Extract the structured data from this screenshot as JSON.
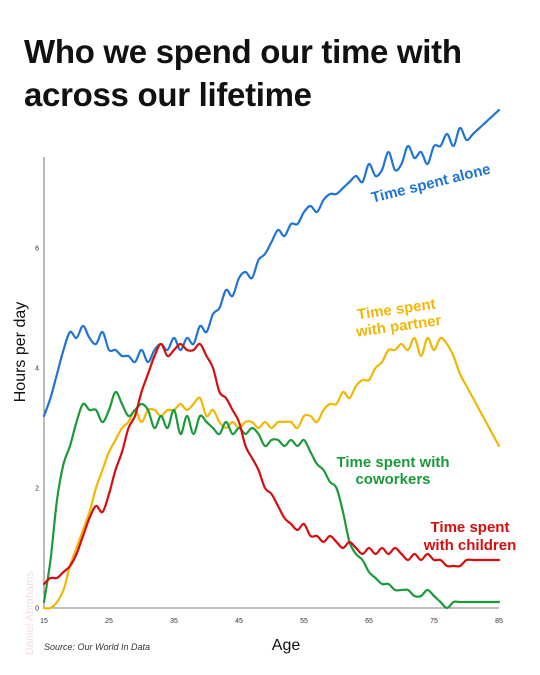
{
  "title_lines": [
    "Who we spend our time with",
    "across our lifetime"
  ],
  "source": "Source: Our World In Data",
  "watermark": "Daniel Abrahams",
  "chart_data": {
    "type": "line",
    "xlabel": "Age",
    "ylabel": "Hours per day",
    "xlim": [
      15,
      85
    ],
    "ylim": [
      0,
      8
    ],
    "x_ticks": [
      15,
      25,
      35,
      45,
      55,
      65,
      75,
      85
    ],
    "y_ticks": [
      0,
      2,
      4,
      6
    ],
    "grid": false,
    "series": [
      {
        "name": "Time spent alone",
        "label_lines": [
          "Time spent alone"
        ],
        "color": "#1f74d6",
        "label_rotate": -14,
        "points": [
          [
            15,
            3.2
          ],
          [
            16,
            3.5
          ],
          [
            17,
            3.9
          ],
          [
            18,
            4.3
          ],
          [
            19,
            4.6
          ],
          [
            20,
            4.5
          ],
          [
            21,
            4.7
          ],
          [
            22,
            4.5
          ],
          [
            23,
            4.4
          ],
          [
            24,
            4.6
          ],
          [
            25,
            4.3
          ],
          [
            26,
            4.3
          ],
          [
            27,
            4.2
          ],
          [
            28,
            4.2
          ],
          [
            29,
            4.1
          ],
          [
            30,
            4.3
          ],
          [
            31,
            4.1
          ],
          [
            32,
            4.3
          ],
          [
            33,
            4.4
          ],
          [
            34,
            4.3
          ],
          [
            35,
            4.5
          ],
          [
            36,
            4.3
          ],
          [
            37,
            4.5
          ],
          [
            38,
            4.4
          ],
          [
            39,
            4.7
          ],
          [
            40,
            4.6
          ],
          [
            41,
            4.9
          ],
          [
            42,
            5.0
          ],
          [
            43,
            5.3
          ],
          [
            44,
            5.2
          ],
          [
            45,
            5.5
          ],
          [
            46,
            5.6
          ],
          [
            47,
            5.5
          ],
          [
            48,
            5.8
          ],
          [
            49,
            5.9
          ],
          [
            50,
            6.1
          ],
          [
            51,
            6.3
          ],
          [
            52,
            6.2
          ],
          [
            53,
            6.4
          ],
          [
            54,
            6.4
          ],
          [
            55,
            6.6
          ],
          [
            56,
            6.7
          ],
          [
            57,
            6.6
          ],
          [
            58,
            6.8
          ],
          [
            59,
            6.9
          ],
          [
            60,
            6.9
          ],
          [
            61,
            7.0
          ],
          [
            62,
            7.1
          ],
          [
            63,
            7.2
          ],
          [
            64,
            7.1
          ],
          [
            65,
            7.4
          ],
          [
            66,
            7.2
          ],
          [
            67,
            7.3
          ],
          [
            68,
            7.6
          ],
          [
            69,
            7.3
          ],
          [
            70,
            7.4
          ],
          [
            71,
            7.7
          ],
          [
            72,
            7.5
          ],
          [
            73,
            7.6
          ],
          [
            74,
            7.4
          ],
          [
            75,
            7.7
          ],
          [
            76,
            7.7
          ],
          [
            77,
            7.9
          ],
          [
            78,
            7.7
          ],
          [
            79,
            8.0
          ],
          [
            80,
            7.8
          ],
          [
            81,
            7.9
          ],
          [
            82,
            8.0
          ],
          [
            83,
            8.1
          ],
          [
            84,
            8.2
          ],
          [
            85,
            8.3
          ]
        ]
      },
      {
        "name": "Time spent with partner",
        "label_lines": [
          "Time spent",
          "with partner"
        ],
        "color": "#f2b705",
        "label_rotate": -8,
        "points": [
          [
            15,
            0.0
          ],
          [
            16,
            0.0
          ],
          [
            17,
            0.1
          ],
          [
            18,
            0.3
          ],
          [
            19,
            0.7
          ],
          [
            20,
            1.0
          ],
          [
            21,
            1.3
          ],
          [
            22,
            1.6
          ],
          [
            23,
            2.0
          ],
          [
            24,
            2.3
          ],
          [
            25,
            2.6
          ],
          [
            26,
            2.8
          ],
          [
            27,
            3.0
          ],
          [
            28,
            3.1
          ],
          [
            29,
            3.3
          ],
          [
            30,
            3.1
          ],
          [
            31,
            3.3
          ],
          [
            32,
            3.3
          ],
          [
            33,
            3.2
          ],
          [
            34,
            3.3
          ],
          [
            35,
            3.3
          ],
          [
            36,
            3.4
          ],
          [
            37,
            3.3
          ],
          [
            38,
            3.4
          ],
          [
            39,
            3.5
          ],
          [
            40,
            3.2
          ],
          [
            41,
            3.3
          ],
          [
            42,
            3.1
          ],
          [
            43,
            3.0
          ],
          [
            44,
            3.1
          ],
          [
            45,
            3.0
          ],
          [
            46,
            3.1
          ],
          [
            47,
            3.1
          ],
          [
            48,
            3.0
          ],
          [
            49,
            3.1
          ],
          [
            50,
            3.0
          ],
          [
            51,
            3.1
          ],
          [
            52,
            3.1
          ],
          [
            53,
            3.1
          ],
          [
            54,
            3.0
          ],
          [
            55,
            3.2
          ],
          [
            56,
            3.2
          ],
          [
            57,
            3.1
          ],
          [
            58,
            3.3
          ],
          [
            59,
            3.4
          ],
          [
            60,
            3.4
          ],
          [
            61,
            3.6
          ],
          [
            62,
            3.5
          ],
          [
            63,
            3.7
          ],
          [
            64,
            3.8
          ],
          [
            65,
            3.8
          ],
          [
            66,
            4.0
          ],
          [
            67,
            4.1
          ],
          [
            68,
            4.3
          ],
          [
            69,
            4.3
          ],
          [
            70,
            4.4
          ],
          [
            71,
            4.3
          ],
          [
            72,
            4.5
          ],
          [
            73,
            4.2
          ],
          [
            74,
            4.5
          ],
          [
            75,
            4.3
          ],
          [
            76,
            4.5
          ],
          [
            77,
            4.4
          ],
          [
            78,
            4.2
          ],
          [
            79,
            3.9
          ],
          [
            80,
            3.7
          ],
          [
            81,
            3.5
          ],
          [
            82,
            3.3
          ],
          [
            83,
            3.1
          ],
          [
            84,
            2.9
          ],
          [
            85,
            2.7
          ]
        ]
      },
      {
        "name": "Time spent with coworkers",
        "label_lines": [
          "Time spent with",
          "coworkers"
        ],
        "color": "#1a9a3a",
        "label_rotate": 0,
        "points": [
          [
            15,
            0.1
          ],
          [
            16,
            0.8
          ],
          [
            17,
            1.8
          ],
          [
            18,
            2.4
          ],
          [
            19,
            2.7
          ],
          [
            20,
            3.1
          ],
          [
            21,
            3.4
          ],
          [
            22,
            3.3
          ],
          [
            23,
            3.3
          ],
          [
            24,
            3.1
          ],
          [
            25,
            3.3
          ],
          [
            26,
            3.6
          ],
          [
            27,
            3.4
          ],
          [
            28,
            3.2
          ],
          [
            29,
            3.3
          ],
          [
            30,
            3.4
          ],
          [
            31,
            3.3
          ],
          [
            32,
            3.0
          ],
          [
            33,
            3.2
          ],
          [
            34,
            3.0
          ],
          [
            35,
            3.3
          ],
          [
            36,
            2.9
          ],
          [
            37,
            3.2
          ],
          [
            38,
            2.9
          ],
          [
            39,
            3.2
          ],
          [
            40,
            3.1
          ],
          [
            41,
            3.0
          ],
          [
            42,
            2.9
          ],
          [
            43,
            3.1
          ],
          [
            44,
            2.9
          ],
          [
            45,
            3.0
          ],
          [
            46,
            2.9
          ],
          [
            47,
            3.0
          ],
          [
            48,
            2.9
          ],
          [
            49,
            2.7
          ],
          [
            50,
            2.8
          ],
          [
            51,
            2.8
          ],
          [
            52,
            2.7
          ],
          [
            53,
            2.8
          ],
          [
            54,
            2.7
          ],
          [
            55,
            2.8
          ],
          [
            56,
            2.6
          ],
          [
            57,
            2.4
          ],
          [
            58,
            2.3
          ],
          [
            59,
            2.1
          ],
          [
            60,
            2.0
          ],
          [
            61,
            1.6
          ],
          [
            62,
            1.1
          ],
          [
            63,
            0.9
          ],
          [
            64,
            0.8
          ],
          [
            65,
            0.6
          ],
          [
            66,
            0.5
          ],
          [
            67,
            0.4
          ],
          [
            68,
            0.4
          ],
          [
            69,
            0.3
          ],
          [
            70,
            0.3
          ],
          [
            71,
            0.3
          ],
          [
            72,
            0.2
          ],
          [
            73,
            0.2
          ],
          [
            74,
            0.3
          ],
          [
            75,
            0.2
          ],
          [
            76,
            0.1
          ],
          [
            77,
            0.0
          ],
          [
            78,
            0.1
          ],
          [
            79,
            0.1
          ],
          [
            80,
            0.1
          ],
          [
            81,
            0.1
          ],
          [
            82,
            0.1
          ],
          [
            83,
            0.1
          ],
          [
            84,
            0.1
          ],
          [
            85,
            0.1
          ]
        ]
      },
      {
        "name": "Time spent with children",
        "label_lines": [
          "Time spent",
          "with children"
        ],
        "color": "#d60d0d",
        "label_rotate": 0,
        "points": [
          [
            15,
            0.4
          ],
          [
            16,
            0.5
          ],
          [
            17,
            0.5
          ],
          [
            18,
            0.6
          ],
          [
            19,
            0.7
          ],
          [
            20,
            0.9
          ],
          [
            21,
            1.2
          ],
          [
            22,
            1.5
          ],
          [
            23,
            1.7
          ],
          [
            24,
            1.6
          ],
          [
            25,
            1.9
          ],
          [
            26,
            2.3
          ],
          [
            27,
            2.6
          ],
          [
            28,
            3.0
          ],
          [
            29,
            3.2
          ],
          [
            30,
            3.6
          ],
          [
            31,
            3.9
          ],
          [
            32,
            4.2
          ],
          [
            33,
            4.4
          ],
          [
            34,
            4.2
          ],
          [
            35,
            4.3
          ],
          [
            36,
            4.4
          ],
          [
            37,
            4.3
          ],
          [
            38,
            4.3
          ],
          [
            39,
            4.4
          ],
          [
            40,
            4.2
          ],
          [
            41,
            4.0
          ],
          [
            42,
            3.6
          ],
          [
            43,
            3.5
          ],
          [
            44,
            3.3
          ],
          [
            45,
            3.1
          ],
          [
            46,
            2.7
          ],
          [
            47,
            2.5
          ],
          [
            48,
            2.3
          ],
          [
            49,
            2.0
          ],
          [
            50,
            1.9
          ],
          [
            51,
            1.7
          ],
          [
            52,
            1.5
          ],
          [
            53,
            1.4
          ],
          [
            54,
            1.3
          ],
          [
            55,
            1.4
          ],
          [
            56,
            1.2
          ],
          [
            57,
            1.2
          ],
          [
            58,
            1.1
          ],
          [
            59,
            1.2
          ],
          [
            60,
            1.1
          ],
          [
            61,
            1.0
          ],
          [
            62,
            1.1
          ],
          [
            63,
            1.0
          ],
          [
            64,
            0.9
          ],
          [
            65,
            1.0
          ],
          [
            66,
            0.9
          ],
          [
            67,
            1.0
          ],
          [
            68,
            0.9
          ],
          [
            69,
            1.0
          ],
          [
            70,
            0.9
          ],
          [
            71,
            0.8
          ],
          [
            72,
            0.9
          ],
          [
            73,
            0.8
          ],
          [
            74,
            0.9
          ],
          [
            75,
            0.8
          ],
          [
            76,
            0.8
          ],
          [
            77,
            0.7
          ],
          [
            78,
            0.7
          ],
          [
            79,
            0.7
          ],
          [
            80,
            0.8
          ],
          [
            81,
            0.8
          ],
          [
            82,
            0.8
          ],
          [
            83,
            0.8
          ],
          [
            84,
            0.8
          ],
          [
            85,
            0.8
          ]
        ]
      }
    ]
  }
}
